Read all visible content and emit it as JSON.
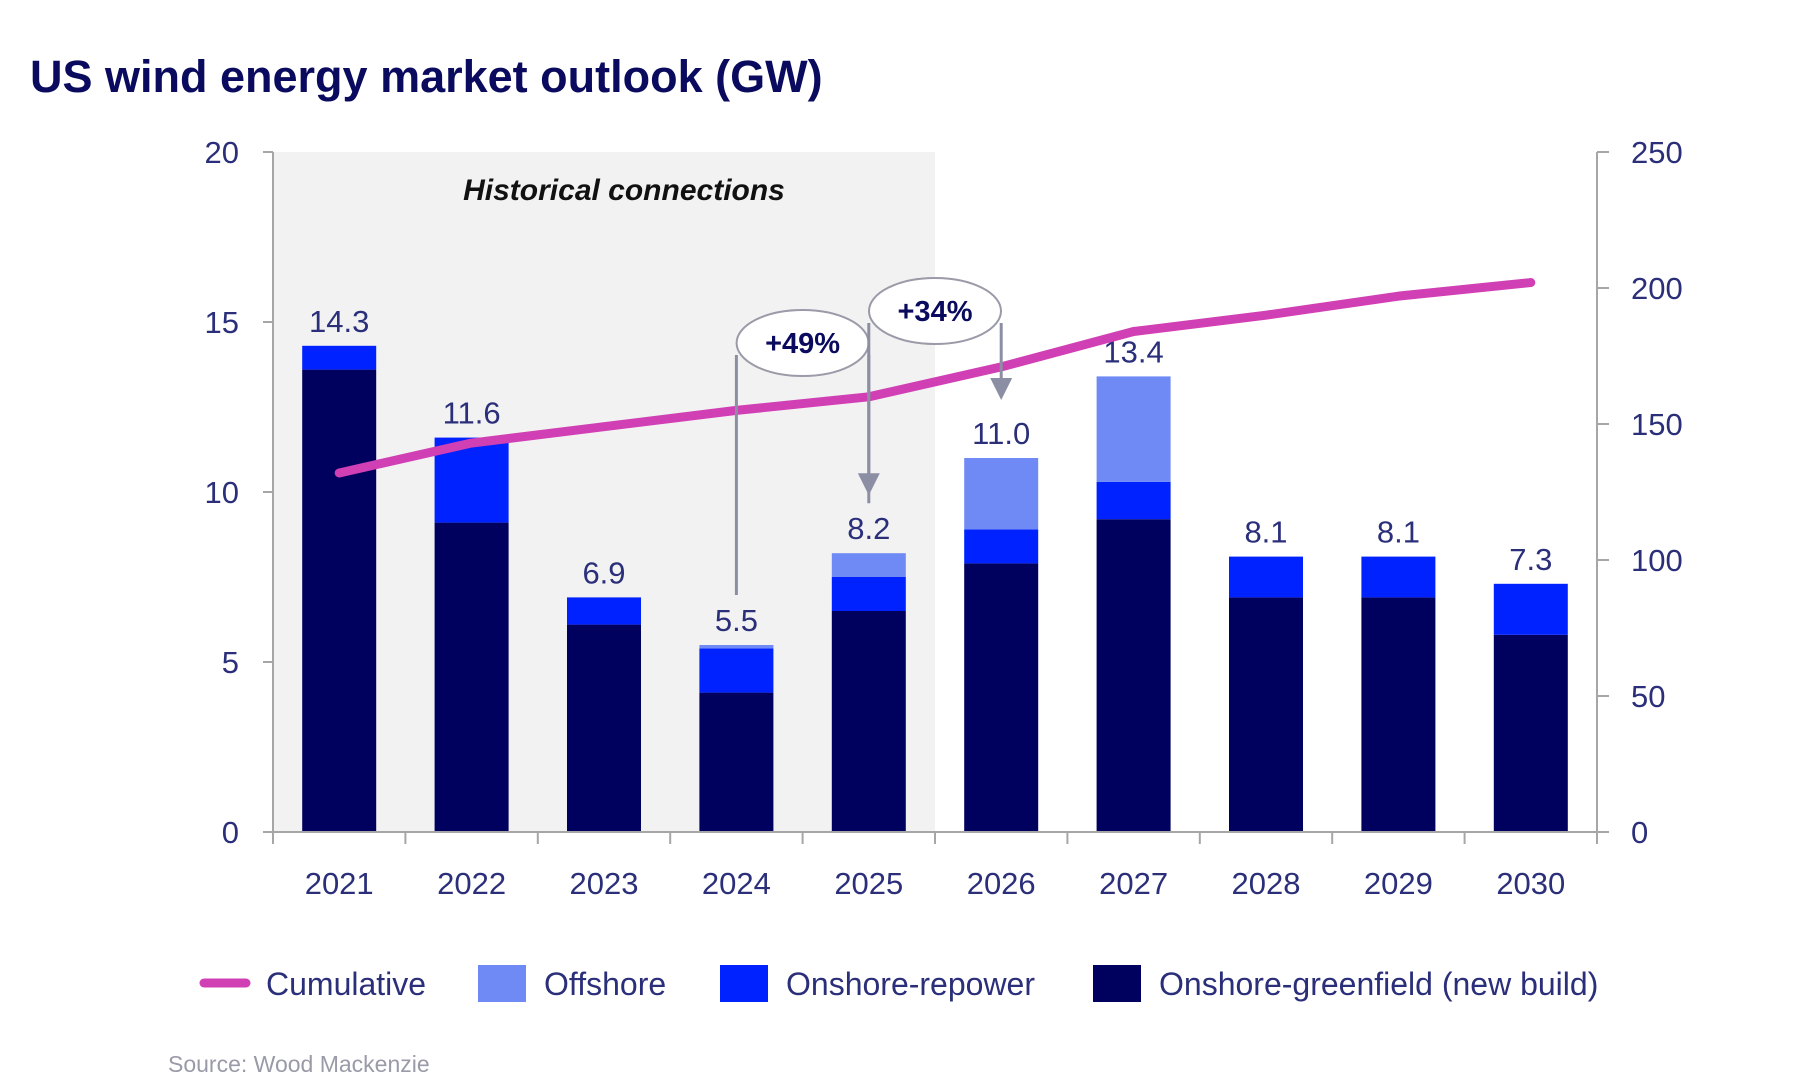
{
  "chart_data": {
    "type": "bar",
    "stacked": true,
    "title": "US wind energy market outlook (GW)",
    "xlabel": "",
    "ylabel": "",
    "ylim": [
      0,
      20
    ],
    "y_ticks": [
      0,
      5,
      10,
      15,
      20
    ],
    "y2lim": [
      0,
      250
    ],
    "y2_ticks": [
      0,
      50,
      100,
      150,
      200,
      250
    ],
    "grid": false,
    "categories": [
      "2021",
      "2022",
      "2023",
      "2024",
      "2025",
      "2026",
      "2027",
      "2028",
      "2029",
      "2030"
    ],
    "series": [
      {
        "name": "Onshore-greenfield (new build)",
        "type": "bar",
        "axis": "left",
        "color": "#00005e",
        "values": [
          13.6,
          9.1,
          6.1,
          4.1,
          6.5,
          7.9,
          9.2,
          6.9,
          6.9,
          5.8
        ]
      },
      {
        "name": "Onshore-repower",
        "type": "bar",
        "axis": "left",
        "color": "#0022ff",
        "values": [
          0.7,
          2.5,
          0.8,
          1.3,
          1.0,
          1.0,
          1.1,
          1.2,
          1.2,
          1.5
        ]
      },
      {
        "name": "Offshore",
        "type": "bar",
        "axis": "left",
        "color": "#6f8af5",
        "values": [
          0.0,
          0.0,
          0.0,
          0.1,
          0.7,
          2.1,
          3.1,
          0.0,
          0.0,
          0.0
        ]
      },
      {
        "name": "Cumulative",
        "type": "line",
        "axis": "right",
        "color": "#d13fb5",
        "values": [
          132,
          143,
          149,
          155,
          160,
          171,
          184,
          190,
          197,
          202
        ]
      }
    ],
    "totals_labels": [
      "14.3",
      "11.6",
      "6.9",
      "5.5",
      "8.2",
      "11.0",
      "13.4",
      "8.1",
      "8.1",
      "7.3"
    ],
    "totals": [
      14.3,
      11.6,
      6.9,
      5.5,
      8.2,
      11.0,
      13.4,
      8.1,
      8.1,
      7.3
    ],
    "shaded_region": {
      "label": "Historical connections",
      "from_category": "2021",
      "to_category": "2025",
      "color": "#f2f2f2"
    },
    "annotations": [
      {
        "text": "+49%",
        "from_category": "2024",
        "to_category": "2025"
      },
      {
        "text": "+34%",
        "from_category": "2025",
        "to_category": "2026"
      }
    ],
    "legend": {
      "position": "bottom",
      "entries": [
        {
          "label": "Cumulative",
          "kind": "line",
          "color": "#d13fb5"
        },
        {
          "label": "Offshore",
          "kind": "box",
          "color": "#6f8af5"
        },
        {
          "label": "Onshore-repower",
          "kind": "box",
          "color": "#0022ff"
        },
        {
          "label": "Onshore-greenfield (new build)",
          "kind": "box",
          "color": "#00005e"
        }
      ]
    },
    "source": "Source: Wood Mackenzie"
  }
}
